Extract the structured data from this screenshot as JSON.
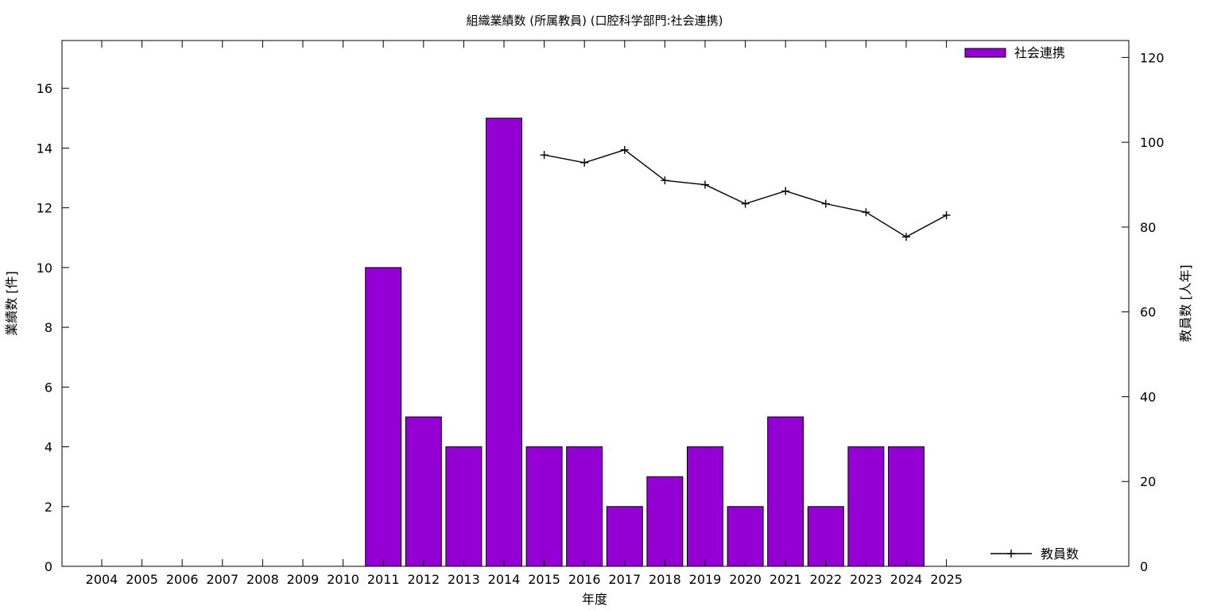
{
  "chart_data": {
    "type": "bar",
    "title": "組織業績数 (所属教員) (口腔科学部門:社会連携)",
    "xlabel": "年度",
    "ylabel": "業績数 [件]",
    "y2label": "教員数 [人年]",
    "categories": [
      "2004",
      "2005",
      "2006",
      "2007",
      "2008",
      "2009",
      "2010",
      "2011",
      "2012",
      "2013",
      "2014",
      "2015",
      "2016",
      "2017",
      "2018",
      "2019",
      "2020",
      "2021",
      "2022",
      "2023",
      "2024",
      "2025"
    ],
    "ylim": [
      0,
      17.6
    ],
    "y2lim": [
      0,
      124
    ],
    "yticks": [
      0,
      2,
      4,
      6,
      8,
      10,
      12,
      14,
      16
    ],
    "y2ticks": [
      0,
      20,
      40,
      60,
      80,
      100,
      120
    ],
    "grid": false,
    "legend_placement": "top-right (bars), bottom-right (line)",
    "series": [
      {
        "name": "社会連携",
        "type": "bar",
        "axis": "left",
        "color": "#9400d3",
        "values": [
          0,
          0,
          0,
          0,
          0,
          0,
          0,
          10,
          5,
          4,
          15,
          4,
          4,
          2,
          3,
          4,
          2,
          5,
          2,
          4,
          4,
          0
        ]
      },
      {
        "name": "教員数",
        "type": "line",
        "axis": "right",
        "color": "#000000",
        "values": [
          null,
          null,
          null,
          null,
          null,
          null,
          null,
          null,
          null,
          null,
          null,
          97,
          95.2,
          98.2,
          91,
          90,
          85.5,
          88.5,
          85.5,
          83.5,
          77.7,
          82.8
        ]
      }
    ]
  }
}
